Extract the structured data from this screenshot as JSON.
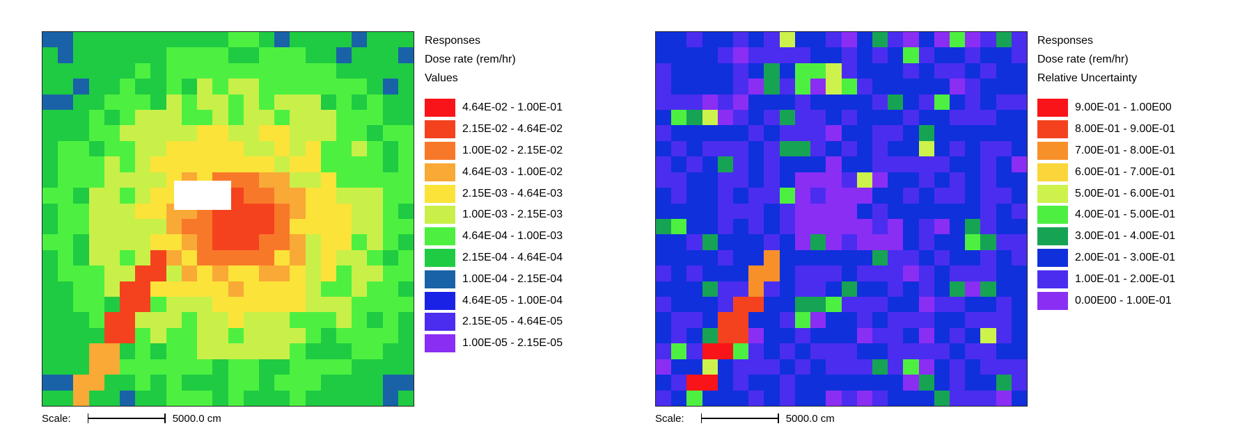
{
  "chart_data": [
    {
      "type": "heatmap",
      "title_lines": [
        "Responses",
        "Dose rate (rem/hr)",
        "Values"
      ],
      "legend_position": "right",
      "legend": [
        {
          "label": "4.64E-02 - 1.00E-01",
          "color": "#f81418"
        },
        {
          "label": "2.15E-02 - 4.64E-02",
          "color": "#f4421e"
        },
        {
          "label": "1.00E-02 - 2.15E-02",
          "color": "#f8782a"
        },
        {
          "label": "4.64E-03 - 1.00E-02",
          "color": "#f9a936"
        },
        {
          "label": "2.15E-03 - 4.64E-03",
          "color": "#fbe33a"
        },
        {
          "label": "1.00E-03 - 2.15E-03",
          "color": "#c9f049"
        },
        {
          "label": "4.64E-04 - 1.00E-03",
          "color": "#4df040"
        },
        {
          "label": "2.15E-04 - 4.64E-04",
          "color": "#1ecb42"
        },
        {
          "label": "1.00E-04 - 2.15E-04",
          "color": "#1962a8"
        },
        {
          "label": "4.64E-05 - 1.00E-04",
          "color": "#1a22e6"
        },
        {
          "label": "2.15E-05 - 4.64E-05",
          "color": "#4b2df0"
        },
        {
          "label": "1.00E-05 - 2.15E-05",
          "color": "#8a2ef4"
        }
      ],
      "scale_label": "Scale:",
      "scale_value": "5000.0 cm"
    },
    {
      "type": "heatmap",
      "title_lines": [
        "Responses",
        "Dose rate (rem/hr)",
        "Relative Uncertainty"
      ],
      "legend_position": "right",
      "legend": [
        {
          "label": "9.00E-01 - 1.00E00",
          "color": "#f81418"
        },
        {
          "label": "8.00E-01 - 9.00E-01",
          "color": "#f4421e"
        },
        {
          "label": "7.00E-01 - 8.00E-01",
          "color": "#f8902a"
        },
        {
          "label": "6.00E-01 - 7.00E-01",
          "color": "#fbd63a"
        },
        {
          "label": "5.00E-01 - 6.00E-01",
          "color": "#cdf24c"
        },
        {
          "label": "4.00E-01 - 5.00E-01",
          "color": "#4df040"
        },
        {
          "label": "3.00E-01 - 4.00E-01",
          "color": "#17a354"
        },
        {
          "label": "2.00E-01 - 3.00E-01",
          "color": "#1030dc"
        },
        {
          "label": "1.00E-01 - 2.00E-01",
          "color": "#4b2df0"
        },
        {
          "label": "0.00E00 - 1.00E-01",
          "color": "#8a2ef4"
        }
      ],
      "scale_label": "Scale:",
      "scale_value": "5000.0 cm"
    }
  ]
}
